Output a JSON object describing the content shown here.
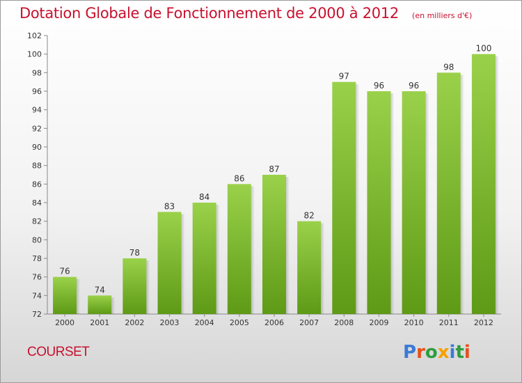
{
  "header": {
    "title": "Dotation Globale de Fonctionnement de 2000 à 2012",
    "subtitle": "(en milliers d'€)"
  },
  "footer": {
    "commune": "COURSET",
    "logo_text": "Proxiti",
    "logo_colors": [
      "#3a7bd5",
      "#e8501a",
      "#2e9e3e",
      "#f5a000",
      "#3a7bd5",
      "#2e9e3e",
      "#e8501a"
    ]
  },
  "chart_data": {
    "type": "bar",
    "categories": [
      "2000",
      "2001",
      "2002",
      "2003",
      "2004",
      "2005",
      "2006",
      "2007",
      "2008",
      "2009",
      "2010",
      "2011",
      "2012"
    ],
    "values": [
      76,
      74,
      78,
      83,
      84,
      86,
      87,
      82,
      97,
      96,
      96,
      98,
      100
    ],
    "ylim": [
      72,
      102
    ],
    "yticks": [
      72,
      74,
      76,
      78,
      80,
      82,
      84,
      86,
      88,
      90,
      92,
      94,
      96,
      98,
      100,
      102
    ],
    "grid": false,
    "bar_color_light": "#9ad14a",
    "bar_color_dark": "#5e9a16"
  }
}
